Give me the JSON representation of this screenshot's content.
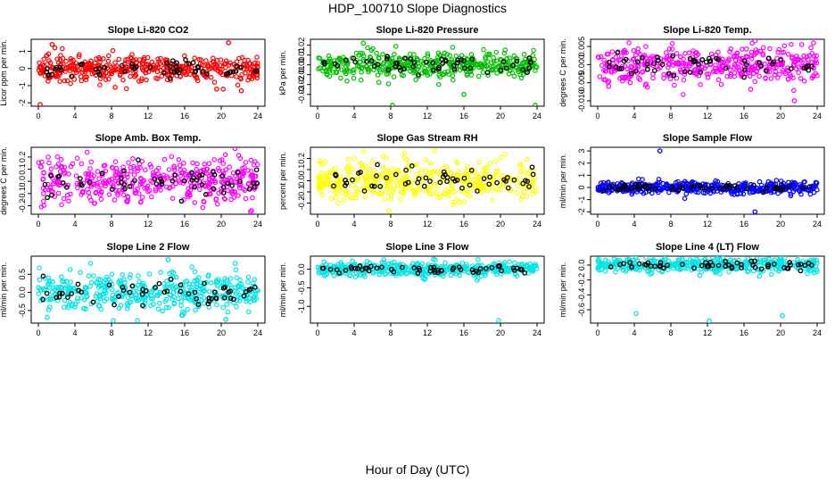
{
  "figure": {
    "title": "HDP_100710  Slope Diagnostics",
    "xlabel": "Hour of Day (UTC)"
  },
  "chart_data": [
    {
      "type": "scatter",
      "title": "Slope Li-820 CO2",
      "ylabel": "Licor ppm per min.",
      "color": "#ff0000",
      "x_range": [
        0,
        24
      ],
      "x_ticks": [
        0,
        4,
        8,
        12,
        16,
        20,
        24
      ],
      "y_range": [
        -2.2,
        1.7
      ],
      "y_ticks": [
        -2,
        -1,
        0,
        1
      ],
      "y_tick_labels": [
        "-2",
        "-1",
        "0",
        "1"
      ],
      "spread": 0.35,
      "cloud_max": 1.2,
      "outliers": [
        [
          0.2,
          -2.1
        ],
        [
          1.5,
          1.4
        ],
        [
          1.8,
          1.2
        ],
        [
          8.4,
          -1.1
        ],
        [
          19.5,
          -1.2
        ],
        [
          20.8,
          1.5
        ],
        [
          22.2,
          -1.3
        ]
      ]
    },
    {
      "type": "scatter",
      "title": "Slope Li-820 Pressure",
      "ylabel": "kPa per min.",
      "color": "#00c000",
      "x_range": [
        0,
        24
      ],
      "x_ticks": [
        0,
        4,
        8,
        12,
        16,
        20,
        24
      ],
      "y_range": [
        -0.042,
        0.026
      ],
      "y_ticks": [
        -0.03,
        -0.02,
        -0.01,
        0.0,
        0.01,
        0.02
      ],
      "y_tick_labels": [
        "-0.03",
        "-0.02",
        "-0.01",
        "0.00",
        "0.01",
        "0.02"
      ],
      "spread": 0.007,
      "cloud_max": 0.02,
      "outliers": [
        [
          5,
          0.022
        ],
        [
          8.2,
          -0.041
        ],
        [
          16,
          -0.03
        ],
        [
          23.8,
          -0.041
        ]
      ]
    },
    {
      "type": "scatter",
      "title": "Slope Li-820 Temp.",
      "ylabel": "degrees C per min.",
      "color": "#ff00ff",
      "x_range": [
        0,
        24
      ],
      "x_ticks": [
        0,
        4,
        8,
        12,
        16,
        20,
        24
      ],
      "y_range": [
        -0.0115,
        0.007
      ],
      "y_ticks": [
        -0.01,
        -0.005,
        0.0,
        0.005
      ],
      "y_tick_labels": [
        "-0.010",
        "-0.005",
        "0.000",
        "0.005"
      ],
      "spread": 0.0025,
      "cloud_max": 0.009,
      "outliers": [
        [
          1.2,
          -0.006
        ],
        [
          21.5,
          -0.01
        ],
        [
          23.6,
          0.006
        ]
      ]
    },
    {
      "type": "scatter",
      "title": "Slope Amb. Box Temp.",
      "ylabel": "degrees C per min.",
      "color": "#ff00ff",
      "x_range": [
        0,
        24
      ],
      "x_ticks": [
        0,
        4,
        8,
        12,
        16,
        20,
        24
      ],
      "y_range": [
        -0.27,
        0.28
      ],
      "y_ticks": [
        -0.2,
        -0.1,
        0.0,
        0.1,
        0.2
      ],
      "y_tick_labels": [
        "-0.2",
        "-0.1",
        "0.0",
        "0.1",
        "0.2"
      ],
      "spread": 0.09,
      "cloud_max": 0.24,
      "outliers": [
        [
          21.5,
          0.27
        ],
        [
          23.2,
          -0.25
        ]
      ]
    },
    {
      "type": "scatter",
      "title": "Slope Gas Stream RH",
      "ylabel": "percent per min.",
      "color": "#ffff00",
      "x_range": [
        0,
        24
      ],
      "x_ticks": [
        0,
        4,
        8,
        12,
        16,
        20,
        24
      ],
      "y_range": [
        -0.3,
        0.3
      ],
      "y_ticks": [
        -0.2,
        -0.1,
        0.0,
        0.1,
        0.2
      ],
      "y_tick_labels": [
        "-0.2",
        "-0.1",
        "0.0",
        "0.1",
        "0.2"
      ],
      "spread": 0.09,
      "cloud_max": 0.26,
      "outliers": [
        [
          7.8,
          -0.27
        ],
        [
          12.8,
          0.27
        ]
      ]
    },
    {
      "type": "scatter",
      "title": "Slope Sample Flow",
      "ylabel": "ml/min per min.",
      "color": "#0000ff",
      "x_range": [
        0,
        24
      ],
      "x_ticks": [
        0,
        4,
        8,
        12,
        16,
        20,
        24
      ],
      "y_range": [
        -2.2,
        3.3
      ],
      "y_ticks": [
        -2,
        -1,
        0,
        1,
        2,
        3
      ],
      "y_tick_labels": [
        "-2",
        "-1",
        "0",
        "1",
        "2",
        "3"
      ],
      "spread": 0.25,
      "cloud_max": 0.9,
      "outliers": [
        [
          6.8,
          3.0
        ],
        [
          17.2,
          -2.0
        ]
      ]
    },
    {
      "type": "scatter",
      "title": "Slope Line 2 Flow",
      "ylabel": "ml/min per min.",
      "color": "#00e5e5",
      "x_range": [
        0,
        24
      ],
      "x_ticks": [
        0,
        4,
        8,
        12,
        16,
        20,
        24
      ],
      "y_range": [
        -0.85,
        1.0
      ],
      "y_ticks": [
        -0.5,
        0.0,
        0.5
      ],
      "y_tick_labels": [
        "-0.5",
        "0.0",
        "0.5"
      ],
      "spread": 0.25,
      "cloud_max": 0.8,
      "outliers": [
        [
          8.2,
          -0.78
        ],
        [
          14.2,
          0.9
        ],
        [
          20.5,
          -0.75
        ]
      ]
    },
    {
      "type": "scatter",
      "title": "Slope Line 3 Flow",
      "ylabel": "ml/min per min.",
      "color": "#00e5e5",
      "x_range": [
        0,
        24
      ],
      "x_ticks": [
        0,
        4,
        8,
        12,
        16,
        20,
        24
      ],
      "y_range": [
        -1.45,
        0.35
      ],
      "y_ticks": [
        -1.0,
        -0.5,
        0.0
      ],
      "y_tick_labels": [
        "-1.0",
        "-0.5",
        "0.0"
      ],
      "spread": 0.09,
      "cloud_max": 0.3,
      "outliers": [
        [
          19.8,
          -1.38
        ]
      ]
    },
    {
      "type": "scatter",
      "title": "Slope Line 4 (LT) Flow",
      "ylabel": "ml/min per min.",
      "color": "#00e5e5",
      "x_range": [
        0,
        24
      ],
      "x_ticks": [
        0,
        4,
        8,
        12,
        16,
        20,
        24
      ],
      "y_range": [
        -0.78,
        0.12
      ],
      "y_ticks": [
        -0.6,
        -0.4,
        -0.2,
        0.0
      ],
      "y_tick_labels": [
        "-0.6",
        "-0.4",
        "-0.2",
        "0.0"
      ],
      "spread": 0.05,
      "cloud_max": 0.15,
      "outliers": [
        [
          4.2,
          -0.65
        ],
        [
          12.2,
          -0.75
        ],
        [
          20.2,
          -0.68
        ]
      ]
    }
  ]
}
